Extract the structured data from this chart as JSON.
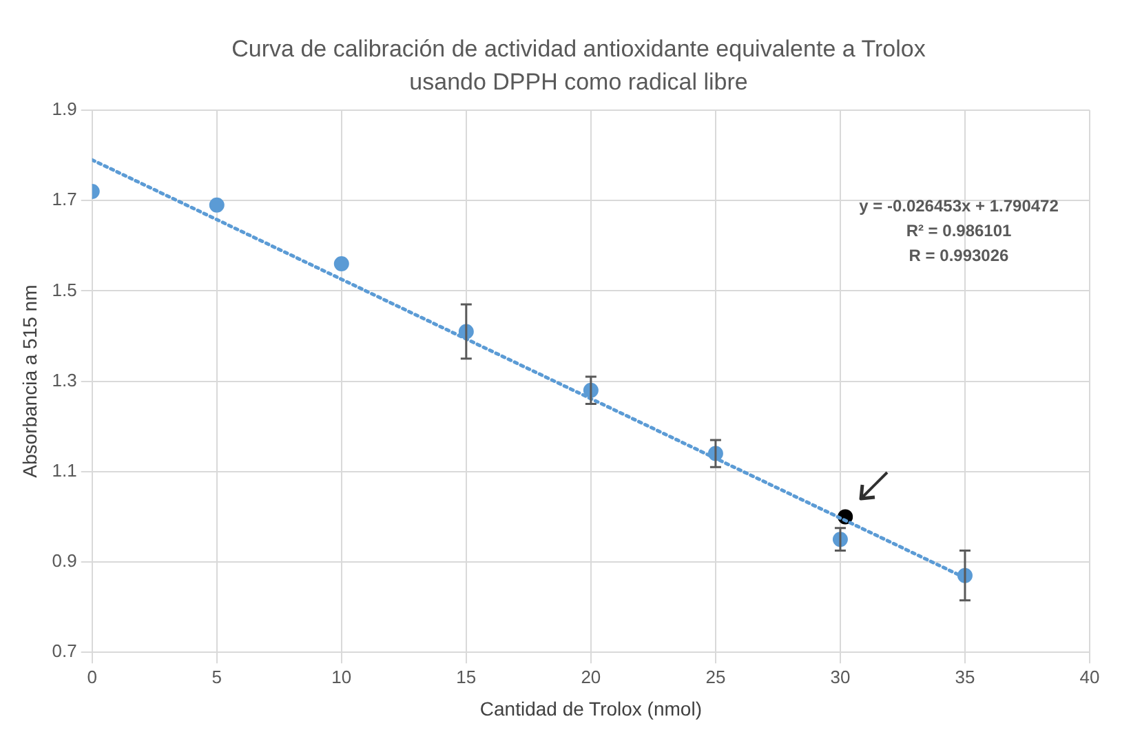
{
  "chart_data": {
    "type": "scatter",
    "title": "Curva de calibración de actividad antioxidante equivalente a Trolox usando DPPH como radical libre",
    "xlabel": "Cantidad de Trolox (nmol)",
    "ylabel": "Absorbancia a 515 nm",
    "series": [
      {
        "color": "#5b9bd5",
        "x": [
          0,
          5,
          10,
          15,
          20,
          25,
          30,
          35
        ],
        "values": [
          1.72,
          1.69,
          1.56,
          1.41,
          1.28,
          1.14,
          0.95,
          0.87
        ],
        "errors": [
          null,
          null,
          null,
          0.06,
          0.03,
          0.03,
          0.025,
          0.055
        ]
      },
      {
        "type": "line",
        "color": "#5b9bd5",
        "line_style": "dotted",
        "marker": "none",
        "x": [
          0,
          35
        ],
        "values": [
          1.79,
          0.865
        ]
      },
      {
        "color": "#000000",
        "x": [
          30.2
        ],
        "values": [
          1.0
        ]
      }
    ],
    "annotations": [
      "y = -0.026453x + 1.790472",
      "R² = 0.986101",
      "R = 0.993026"
    ],
    "xlim": [
      0,
      40
    ],
    "xticks": [
      0,
      5,
      10,
      15,
      20,
      25,
      30,
      35,
      40
    ],
    "ylim": [
      0.7,
      1.9
    ],
    "yticks": [
      0.7,
      0.9,
      1.1,
      1.3,
      1.5,
      1.7,
      1.9
    ],
    "grid": true,
    "legend": false,
    "marker": "circle"
  }
}
